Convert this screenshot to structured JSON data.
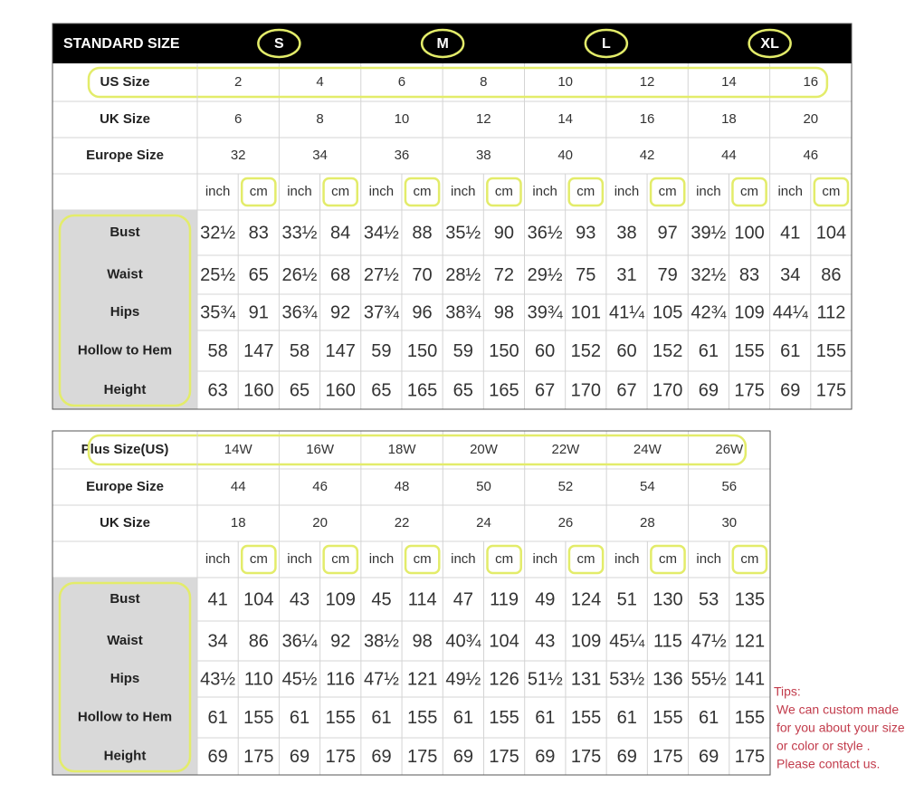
{
  "table1": {
    "header": "STANDARD SIZE",
    "groups": [
      "S",
      "M",
      "L",
      "XL"
    ],
    "units": [
      "inch",
      "cm"
    ],
    "size_rows": [
      {
        "label": "US Size",
        "values": [
          "2",
          "4",
          "6",
          "8",
          "10",
          "12",
          "14",
          "16"
        ]
      },
      {
        "label": "UK Size",
        "values": [
          "6",
          "8",
          "10",
          "12",
          "14",
          "16",
          "18",
          "20"
        ]
      },
      {
        "label": "Europe Size",
        "values": [
          "32",
          "34",
          "36",
          "38",
          "40",
          "42",
          "44",
          "46"
        ]
      }
    ],
    "measurements": [
      {
        "label": "Bust",
        "values": [
          "32½",
          "83",
          "33½",
          "84",
          "34½",
          "88",
          "35½",
          "90",
          "36½",
          "93",
          "38",
          "97",
          "39½",
          "100",
          "41",
          "104"
        ]
      },
      {
        "label": "Waist",
        "values": [
          "25½",
          "65",
          "26½",
          "68",
          "27½",
          "70",
          "28½",
          "72",
          "29½",
          "75",
          "31",
          "79",
          "32½",
          "83",
          "34",
          "86"
        ]
      },
      {
        "label": "Hips",
        "values": [
          "35¾",
          "91",
          "36¾",
          "92",
          "37¾",
          "96",
          "38¾",
          "98",
          "39¾",
          "101",
          "41¼",
          "105",
          "42¾",
          "109",
          "44¼",
          "112"
        ]
      },
      {
        "label": "Hollow to Hem",
        "values": [
          "58",
          "147",
          "58",
          "147",
          "59",
          "150",
          "59",
          "150",
          "60",
          "152",
          "60",
          "152",
          "61",
          "155",
          "61",
          "155"
        ]
      },
      {
        "label": "Height",
        "values": [
          "63",
          "160",
          "65",
          "160",
          "65",
          "165",
          "65",
          "165",
          "67",
          "170",
          "67",
          "170",
          "69",
          "175",
          "69",
          "175"
        ]
      }
    ]
  },
  "table2": {
    "units": [
      "inch",
      "cm"
    ],
    "size_rows": [
      {
        "label": "Plus Size(US)",
        "values": [
          "14W",
          "16W",
          "18W",
          "20W",
          "22W",
          "24W",
          "26W"
        ]
      },
      {
        "label": "Europe Size",
        "values": [
          "44",
          "46",
          "48",
          "50",
          "52",
          "54",
          "56"
        ]
      },
      {
        "label": "UK Size",
        "values": [
          "18",
          "20",
          "22",
          "24",
          "26",
          "28",
          "30"
        ]
      }
    ],
    "measurements": [
      {
        "label": "Bust",
        "values": [
          "41",
          "104",
          "43",
          "109",
          "45",
          "114",
          "47",
          "119",
          "49",
          "124",
          "51",
          "130",
          "53",
          "135"
        ]
      },
      {
        "label": "Waist",
        "values": [
          "34",
          "86",
          "36¼",
          "92",
          "38½",
          "98",
          "40¾",
          "104",
          "43",
          "109",
          "45¼",
          "115",
          "47½",
          "121"
        ]
      },
      {
        "label": "Hips",
        "values": [
          "43½",
          "110",
          "45½",
          "116",
          "47½",
          "121",
          "49½",
          "126",
          "51½",
          "131",
          "53½",
          "136",
          "55½",
          "141"
        ]
      },
      {
        "label": "Hollow to Hem",
        "values": [
          "61",
          "155",
          "61",
          "155",
          "61",
          "155",
          "61",
          "155",
          "61",
          "155",
          "61",
          "155",
          "61",
          "155"
        ]
      },
      {
        "label": "Height",
        "values": [
          "69",
          "175",
          "69",
          "175",
          "69",
          "175",
          "69",
          "175",
          "69",
          "175",
          "69",
          "175",
          "69",
          "175"
        ]
      }
    ]
  },
  "tips": {
    "title": "Tips:",
    "lines": [
      "We can custom made",
      "for you about your size",
      "or color or style .",
      "Please contact us."
    ]
  }
}
